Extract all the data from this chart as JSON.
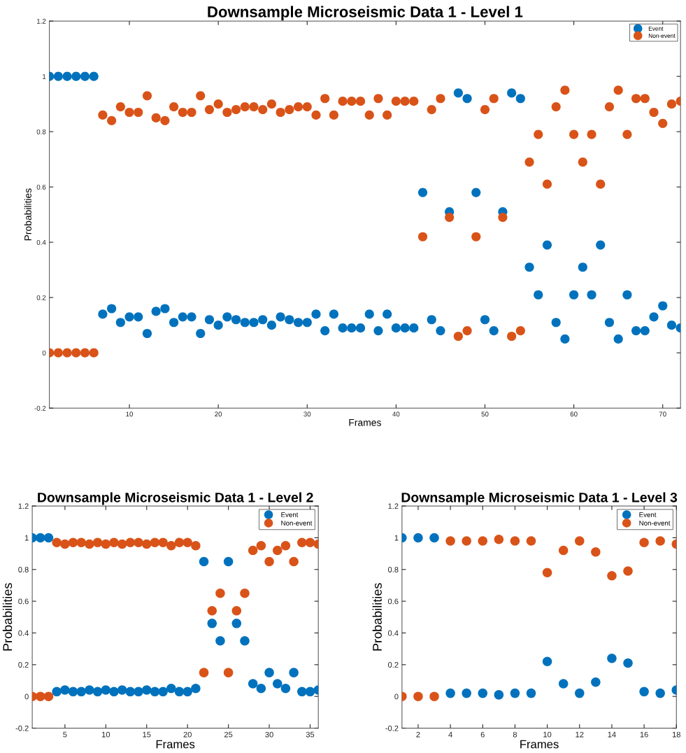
{
  "chart_data": [
    {
      "type": "scatter",
      "title": "Downsample Microseismic Data 1 - Level 1",
      "xlabel": "Frames",
      "ylabel": "Probabilities",
      "x": [
        1,
        2,
        3,
        4,
        5,
        6,
        7,
        8,
        9,
        10,
        11,
        12,
        13,
        14,
        15,
        16,
        17,
        18,
        19,
        20,
        21,
        22,
        23,
        24,
        25,
        26,
        27,
        28,
        29,
        30,
        31,
        32,
        33,
        34,
        35,
        36,
        37,
        38,
        39,
        40,
        41,
        42,
        43,
        44,
        45,
        46,
        47,
        48,
        49,
        50,
        51,
        52,
        53,
        54,
        55,
        56,
        57,
        58,
        59,
        60,
        61,
        62,
        63,
        64,
        65,
        66,
        67,
        68,
        69,
        70,
        71,
        72
      ],
      "xlim": [
        1,
        72
      ],
      "xticks": [
        10,
        20,
        30,
        40,
        50,
        60,
        70
      ],
      "ylim": [
        -0.2,
        1.2
      ],
      "yticks": [
        -0.2,
        0,
        0.2,
        0.4,
        0.6,
        0.8,
        1,
        1.2
      ],
      "marker": "circle",
      "grid": false,
      "legend": "top right",
      "series": [
        {
          "name": "Event",
          "color": "#0072bd",
          "values": [
            1,
            1,
            1,
            1,
            1,
            1,
            0.14,
            0.16,
            0.11,
            0.13,
            0.13,
            0.07,
            0.15,
            0.16,
            0.11,
            0.13,
            0.13,
            0.07,
            0.12,
            0.1,
            0.13,
            0.12,
            0.11,
            0.11,
            0.12,
            0.1,
            0.13,
            0.12,
            0.11,
            0.11,
            0.14,
            0.08,
            0.14,
            0.09,
            0.09,
            0.09,
            0.14,
            0.08,
            0.14,
            0.09,
            0.09,
            0.09,
            0.58,
            0.12,
            0.08,
            0.51,
            0.94,
            0.92,
            0.58,
            0.12,
            0.08,
            0.51,
            0.94,
            0.92,
            0.31,
            0.21,
            0.39,
            0.11,
            0.05,
            0.21,
            0.31,
            0.21,
            0.39,
            0.11,
            0.05,
            0.21,
            0.08,
            0.08,
            0.13,
            0.17,
            0.1,
            0.09
          ]
        },
        {
          "name": "Non-event",
          "color": "#d95319",
          "values": [
            0,
            0,
            0,
            0,
            0,
            0,
            0.86,
            0.84,
            0.89,
            0.87,
            0.87,
            0.93,
            0.85,
            0.84,
            0.89,
            0.87,
            0.87,
            0.93,
            0.88,
            0.9,
            0.87,
            0.88,
            0.89,
            0.89,
            0.88,
            0.9,
            0.87,
            0.88,
            0.89,
            0.89,
            0.86,
            0.92,
            0.86,
            0.91,
            0.91,
            0.91,
            0.86,
            0.92,
            0.86,
            0.91,
            0.91,
            0.91,
            0.42,
            0.88,
            0.92,
            0.49,
            0.06,
            0.08,
            0.42,
            0.88,
            0.92,
            0.49,
            0.06,
            0.08,
            0.69,
            0.79,
            0.61,
            0.89,
            0.95,
            0.79,
            0.69,
            0.79,
            0.61,
            0.89,
            0.95,
            0.79,
            0.92,
            0.92,
            0.87,
            0.83,
            0.9,
            0.91
          ]
        }
      ]
    },
    {
      "type": "scatter",
      "title": "Downsample Microseismic Data 1 - Level 2",
      "xlabel": "Frames",
      "ylabel": "Probabilities",
      "x": [
        1,
        2,
        3,
        4,
        5,
        6,
        7,
        8,
        9,
        10,
        11,
        12,
        13,
        14,
        15,
        16,
        17,
        18,
        19,
        20,
        21,
        22,
        23,
        24,
        25,
        26,
        27,
        28,
        29,
        30,
        31,
        32,
        33,
        34,
        35,
        36
      ],
      "xlim": [
        1,
        36
      ],
      "xticks": [
        5,
        10,
        15,
        20,
        25,
        30,
        35
      ],
      "ylim": [
        -0.2,
        1.2
      ],
      "yticks": [
        -0.2,
        0,
        0.2,
        0.4,
        0.6,
        0.8,
        1,
        1.2
      ],
      "marker": "circle",
      "grid": false,
      "legend": "top right",
      "series": [
        {
          "name": "Event",
          "color": "#0072bd",
          "values": [
            1,
            1,
            1,
            0.03,
            0.04,
            0.03,
            0.03,
            0.04,
            0.03,
            0.04,
            0.03,
            0.04,
            0.03,
            0.03,
            0.04,
            0.03,
            0.03,
            0.05,
            0.03,
            0.03,
            0.05,
            0.85,
            0.46,
            0.35,
            0.85,
            0.46,
            0.35,
            0.08,
            0.05,
            0.15,
            0.08,
            0.05,
            0.15,
            0.03,
            0.03,
            0.04
          ]
        },
        {
          "name": "Non-event",
          "color": "#d95319",
          "values": [
            0,
            0,
            0,
            0.97,
            0.96,
            0.97,
            0.97,
            0.96,
            0.97,
            0.96,
            0.97,
            0.96,
            0.97,
            0.97,
            0.96,
            0.97,
            0.97,
            0.95,
            0.97,
            0.97,
            0.95,
            0.15,
            0.54,
            0.65,
            0.15,
            0.54,
            0.65,
            0.92,
            0.95,
            0.85,
            0.92,
            0.95,
            0.85,
            0.97,
            0.97,
            0.96
          ]
        }
      ]
    },
    {
      "type": "scatter",
      "title": "Downsample Microseismic Data 1 - Level 3",
      "xlabel": "Frames",
      "ylabel": "Probabilities",
      "x": [
        1,
        2,
        3,
        4,
        5,
        6,
        7,
        8,
        9,
        10,
        11,
        12,
        13,
        14,
        15,
        16,
        17,
        18
      ],
      "xlim": [
        1,
        18
      ],
      "xticks": [
        2,
        4,
        6,
        8,
        10,
        12,
        14,
        16,
        18
      ],
      "ylim": [
        -0.2,
        1.2
      ],
      "yticks": [
        -0.2,
        0,
        0.2,
        0.4,
        0.6,
        0.8,
        1,
        1.2
      ],
      "marker": "circle",
      "grid": false,
      "legend": "top right",
      "series": [
        {
          "name": "Event",
          "color": "#0072bd",
          "values": [
            1,
            1,
            1,
            0.02,
            0.02,
            0.02,
            0.01,
            0.02,
            0.02,
            0.22,
            0.08,
            0.02,
            0.09,
            0.24,
            0.21,
            0.03,
            0.02,
            0.04
          ]
        },
        {
          "name": "Non-event",
          "color": "#d95319",
          "values": [
            0,
            0,
            0,
            0.98,
            0.98,
            0.98,
            0.99,
            0.98,
            0.98,
            0.78,
            0.92,
            0.98,
            0.91,
            0.76,
            0.79,
            0.97,
            0.98,
            0.96
          ]
        }
      ]
    }
  ]
}
